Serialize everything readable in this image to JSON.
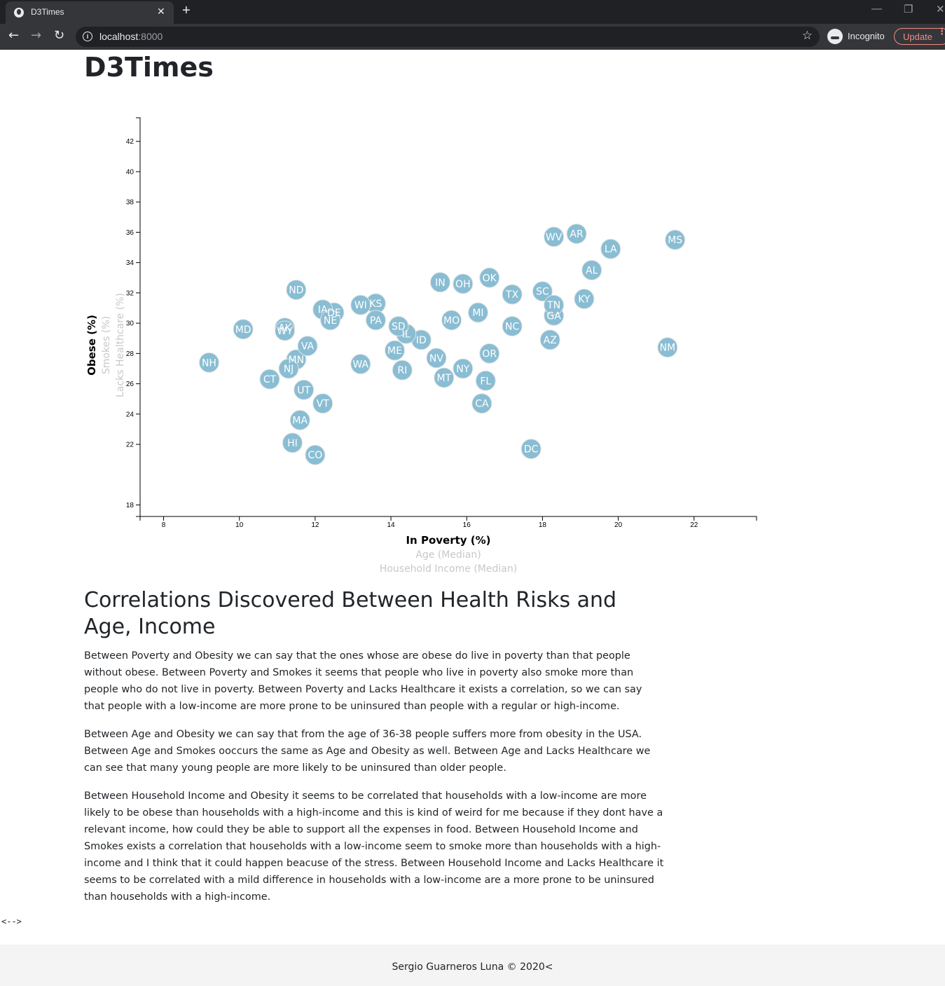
{
  "browser": {
    "tab_title": "D3Times",
    "tab_close": "✕",
    "new_tab": "+",
    "url_host": "localhost",
    "url_port": ":8000",
    "incognito_label": "Incognito",
    "update_label": "Update",
    "minimize": "—",
    "restore": "❐",
    "close": "✕"
  },
  "page": {
    "title": "D3Times",
    "stray_text": "<-->",
    "footer": "Sergio Guarneros Luna © 2020<"
  },
  "chart_data": {
    "type": "scatter",
    "x_axis": {
      "ticks": [
        "8",
        "10",
        "12",
        "14",
        "16",
        "18",
        "20",
        "22"
      ],
      "labels": [
        {
          "text": "In Poverty (%)",
          "active": true
        },
        {
          "text": "Age (Median)",
          "active": false
        },
        {
          "text": "Household Income (Median)",
          "active": false
        }
      ],
      "range": [
        7.38,
        23.65
      ]
    },
    "y_axis": {
      "ticks": [
        "18",
        "22",
        "24",
        "26",
        "28",
        "30",
        "32",
        "34",
        "36",
        "38",
        "40",
        "42"
      ],
      "labels": [
        {
          "text": "Obese (%)",
          "active": true
        },
        {
          "text": "Smokes (%)",
          "active": false
        },
        {
          "text": "Lacks Healthcare (%)",
          "active": false
        }
      ],
      "range": [
        17.24,
        43.56
      ]
    },
    "points": [
      {
        "state": "AL",
        "x": 19.3,
        "y": 33.5
      },
      {
        "state": "AK",
        "x": 11.2,
        "y": 29.7
      },
      {
        "state": "AZ",
        "x": 18.2,
        "y": 28.9
      },
      {
        "state": "AR",
        "x": 18.9,
        "y": 35.9
      },
      {
        "state": "CA",
        "x": 16.4,
        "y": 24.7
      },
      {
        "state": "CO",
        "x": 12.0,
        "y": 21.3
      },
      {
        "state": "CT",
        "x": 10.8,
        "y": 26.3
      },
      {
        "state": "DE",
        "x": 12.5,
        "y": 30.7
      },
      {
        "state": "DC",
        "x": 17.7,
        "y": 21.7
      },
      {
        "state": "FL",
        "x": 16.5,
        "y": 26.2
      },
      {
        "state": "GA",
        "x": 18.3,
        "y": 30.5
      },
      {
        "state": "HI",
        "x": 11.4,
        "y": 22.1
      },
      {
        "state": "ID",
        "x": 14.8,
        "y": 28.9
      },
      {
        "state": "IL",
        "x": 14.4,
        "y": 29.3
      },
      {
        "state": "IN",
        "x": 15.3,
        "y": 32.7
      },
      {
        "state": "IA",
        "x": 12.2,
        "y": 30.9
      },
      {
        "state": "KS",
        "x": 13.6,
        "y": 31.3
      },
      {
        "state": "KY",
        "x": 19.1,
        "y": 31.6
      },
      {
        "state": "LA",
        "x": 19.8,
        "y": 34.9
      },
      {
        "state": "ME",
        "x": 14.1,
        "y": 28.2
      },
      {
        "state": "MD",
        "x": 10.1,
        "y": 29.6
      },
      {
        "state": "MA",
        "x": 11.6,
        "y": 23.6
      },
      {
        "state": "MI",
        "x": 16.3,
        "y": 30.7
      },
      {
        "state": "MN",
        "x": 11.5,
        "y": 27.6
      },
      {
        "state": "MS",
        "x": 21.5,
        "y": 35.5
      },
      {
        "state": "MO",
        "x": 15.6,
        "y": 30.2
      },
      {
        "state": "MT",
        "x": 15.4,
        "y": 26.4
      },
      {
        "state": "NE",
        "x": 12.4,
        "y": 30.2
      },
      {
        "state": "NV",
        "x": 15.2,
        "y": 27.7
      },
      {
        "state": "NH",
        "x": 9.2,
        "y": 27.4
      },
      {
        "state": "NJ",
        "x": 11.3,
        "y": 27.0
      },
      {
        "state": "NM",
        "x": 21.3,
        "y": 28.4
      },
      {
        "state": "NY",
        "x": 15.9,
        "y": 27.0
      },
      {
        "state": "NC",
        "x": 17.2,
        "y": 29.8
      },
      {
        "state": "ND",
        "x": 11.5,
        "y": 32.2
      },
      {
        "state": "OH",
        "x": 15.9,
        "y": 32.6
      },
      {
        "state": "OK",
        "x": 16.6,
        "y": 33.0
      },
      {
        "state": "OR",
        "x": 16.6,
        "y": 28.0
      },
      {
        "state": "PA",
        "x": 13.6,
        "y": 30.2
      },
      {
        "state": "RI",
        "x": 14.3,
        "y": 26.9
      },
      {
        "state": "SC",
        "x": 18.0,
        "y": 32.1
      },
      {
        "state": "SD",
        "x": 14.2,
        "y": 29.8
      },
      {
        "state": "TN",
        "x": 18.3,
        "y": 31.2
      },
      {
        "state": "TX",
        "x": 17.2,
        "y": 31.9
      },
      {
        "state": "UT",
        "x": 11.7,
        "y": 25.6
      },
      {
        "state": "VT",
        "x": 12.2,
        "y": 24.7
      },
      {
        "state": "VA",
        "x": 11.8,
        "y": 28.5
      },
      {
        "state": "WA",
        "x": 13.2,
        "y": 27.3
      },
      {
        "state": "WV",
        "x": 18.3,
        "y": 35.7
      },
      {
        "state": "WI",
        "x": 13.2,
        "y": 31.2
      },
      {
        "state": "WY",
        "x": 11.2,
        "y": 29.5
      }
    ]
  },
  "analysis": {
    "heading": "Correlations Discovered Between Health Risks and Age, Income",
    "paragraphs": [
      "Between Poverty and Obesity we can say that the ones whose are obese do live in poverty than that people without obese. Between Poverty and Smokes it seems that people who live in poverty also smoke more than people who do not live in poverty. Between Poverty and Lacks Healthcare it exists a correlation, so we can say that people with a low-income are more prone to be uninsured than people with a regular or high-income.",
      "Between Age and Obesity we can say that from the age of 36-38 people suffers more from obesity in the USA. Between Age and Smokes ooccurs the same as Age and Obesity as well. Between Age and Lacks Healthcare we can see that many young people are more likely to be uninsured than older people.",
      "Between Household Income and Obesity it seems to be correlated that households with a low-income are more likely to be obese than households with a high-income and this is kind of weird for me because if they dont have a relevant income, how could they be able to support all the expenses in food. Between Household Income and Smokes exists a correlation that households with a low-income seem to smoke more than households with a high-income and I think that it could happen beacuse of the stress. Between Household Income and Lacks Healthcare it seems to be correlated with a mild difference in households with a low-income are a more prone to be uninsured than households with a high-income."
    ]
  }
}
